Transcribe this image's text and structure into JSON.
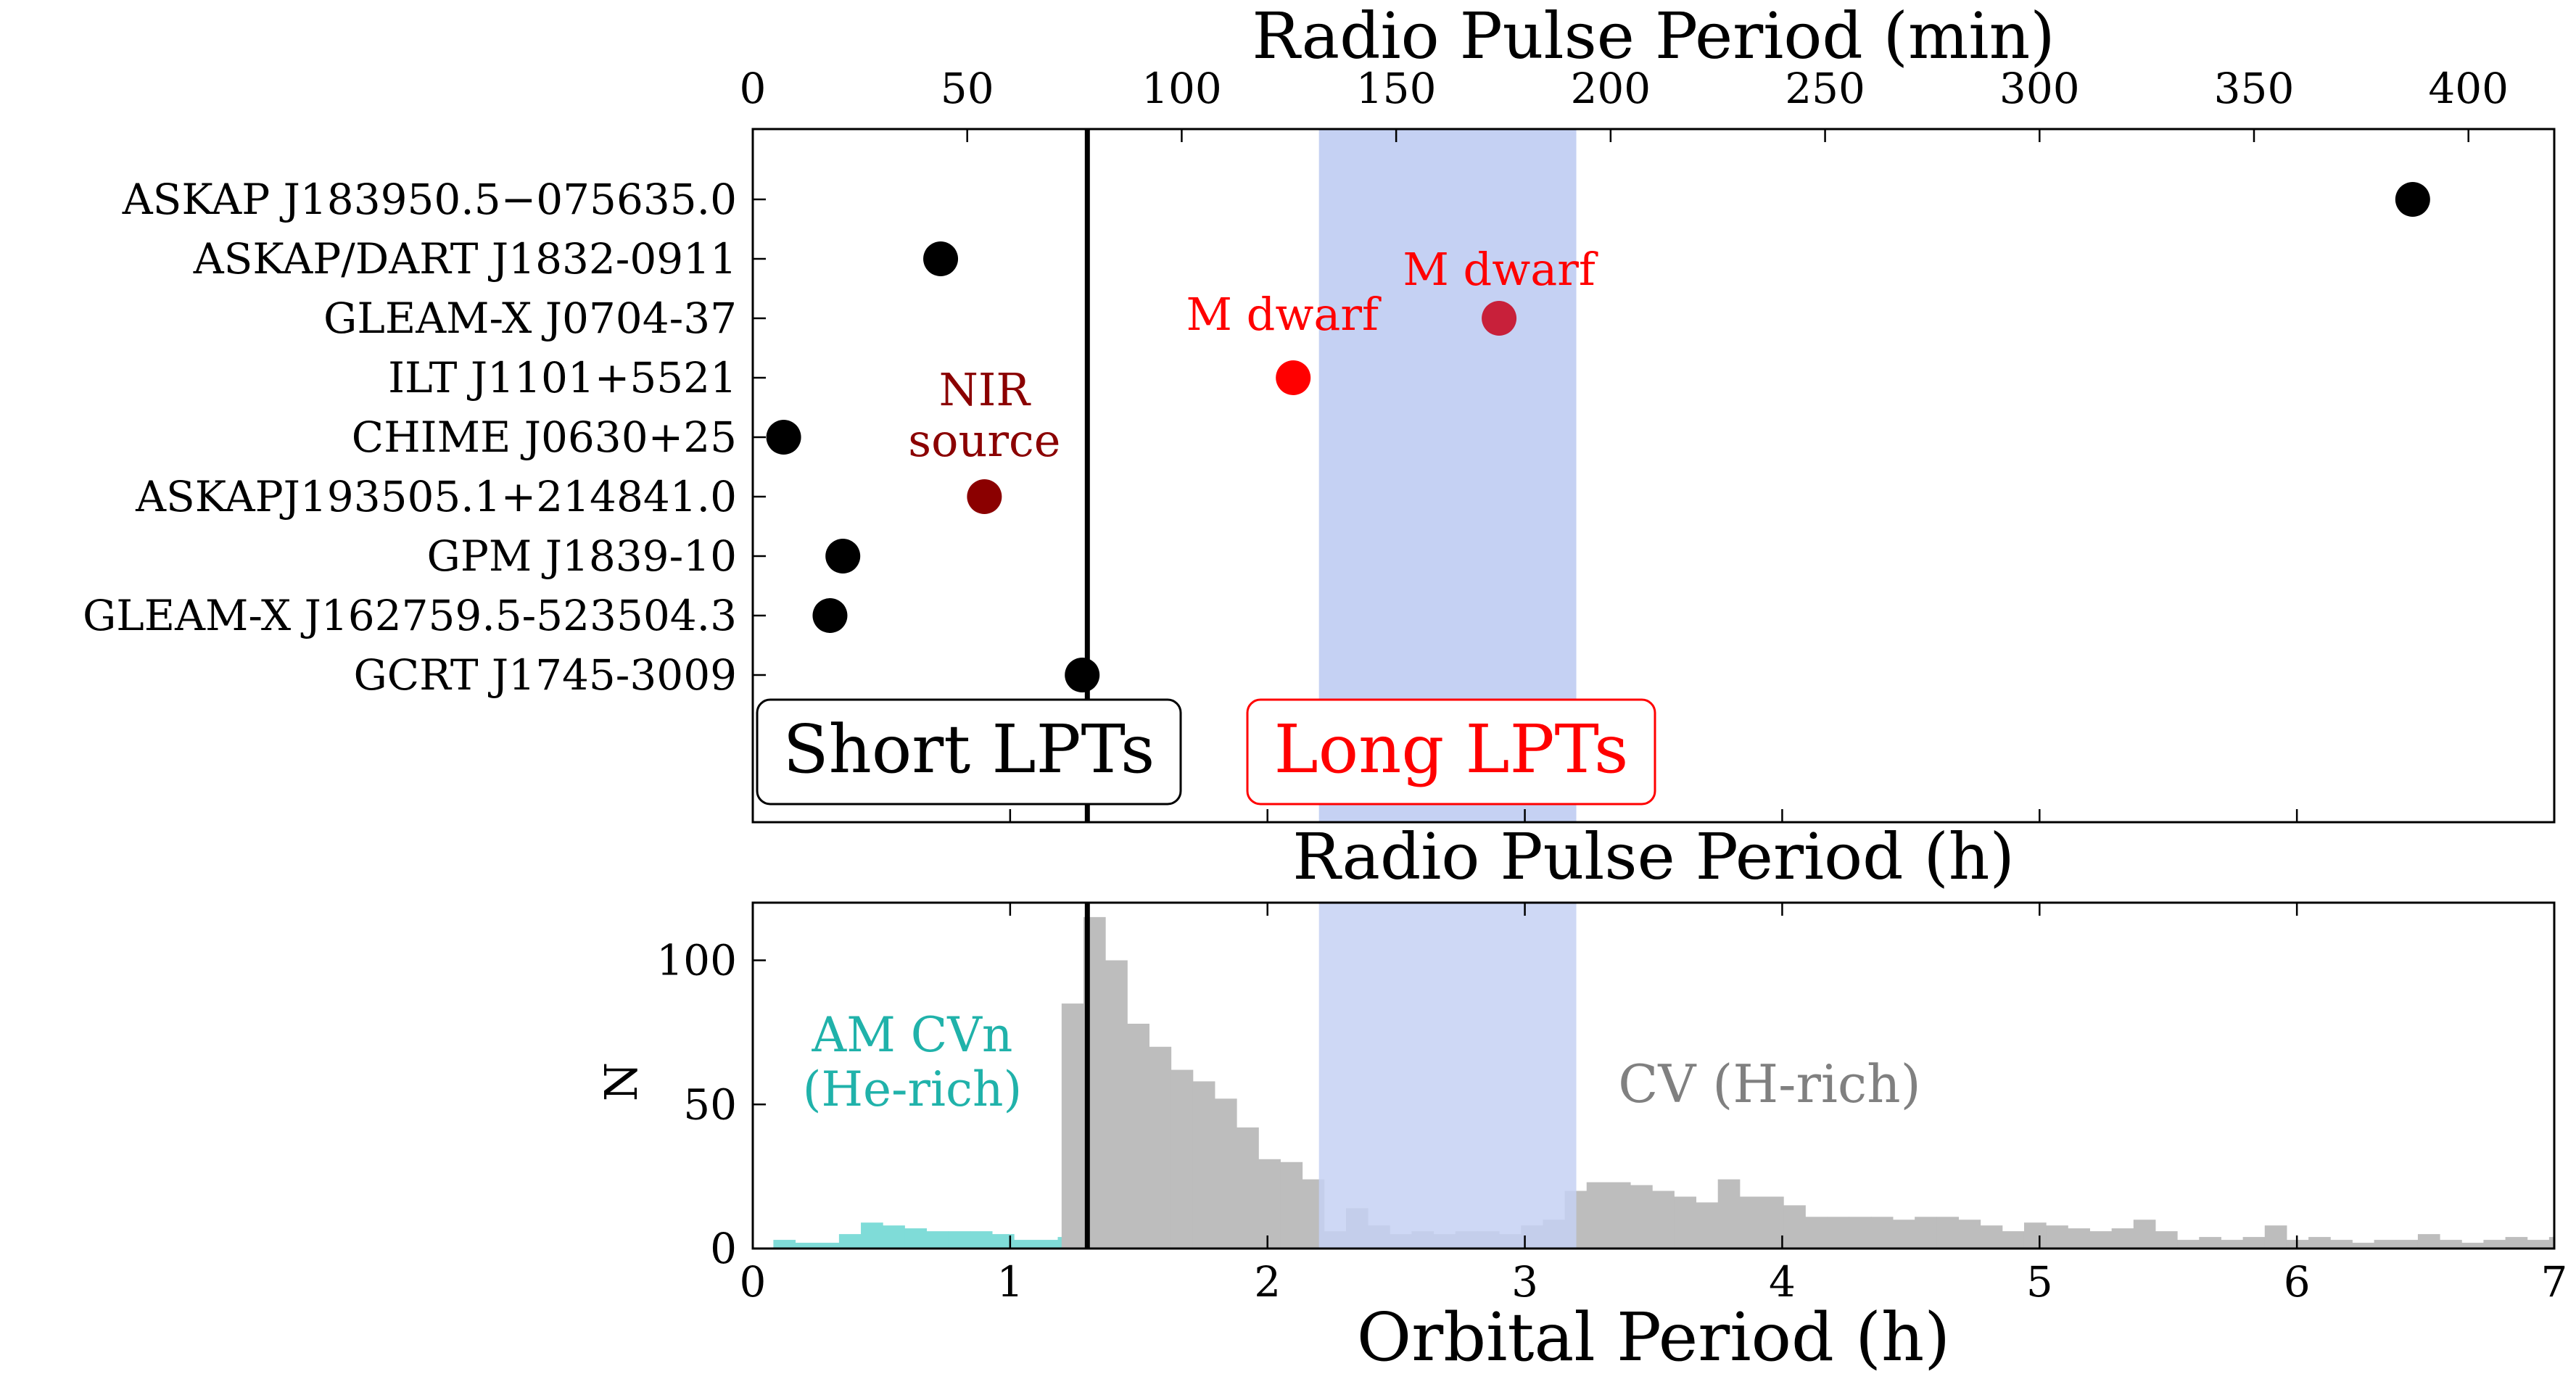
{
  "chart_data": [
    {
      "type": "scatter",
      "title": "Radio Pulse Period (min)",
      "xlabel": "Radio Pulse Period (h)",
      "xlim": [
        0,
        7
      ],
      "x_top_units": "min",
      "x_top_ticks": [
        0,
        50,
        100,
        150,
        200,
        250,
        300,
        350,
        400
      ],
      "x_top_tick_labels": [
        "0",
        "50",
        "100",
        "150",
        "200",
        "250",
        "300",
        "350",
        "400"
      ],
      "sources": [
        {
          "label": "ASKAP J183950.5−075635.0",
          "x": 6.45,
          "color": "#000000"
        },
        {
          "label": "ASKAP/DART J1832-0911",
          "x": 0.73,
          "color": "#000000"
        },
        {
          "label": "GLEAM-X J0704-37",
          "x": 2.9,
          "color": "#c8203a"
        },
        {
          "label": "ILT J1101+5521",
          "x": 2.1,
          "color": "#ff0000"
        },
        {
          "label": "CHIME J0630+25",
          "x": 0.12,
          "color": "#000000"
        },
        {
          "label": "ASKAPJ193505.1+214841.0",
          "x": 0.9,
          "color": "#8b0000"
        },
        {
          "label": "GPM J1839-10",
          "x": 0.35,
          "color": "#000000"
        },
        {
          "label": "GLEAM-X J162759.5-523504.3",
          "x": 0.3,
          "color": "#000000"
        },
        {
          "label": "GCRT J1745-3009",
          "x": 1.28,
          "color": "#000000"
        }
      ],
      "annotations": [
        {
          "text": "M dwarf",
          "color": "#ff0000"
        },
        {
          "text": "M dwarf",
          "color": "#ff0000"
        },
        {
          "text": "NIR",
          "color": "#8b0000"
        },
        {
          "text": "source",
          "color": "#8b0000"
        }
      ],
      "boxes": [
        {
          "text": "Short LPTs",
          "color": "#000000"
        },
        {
          "text": "Long LPTs",
          "color": "#ff0000"
        }
      ],
      "vline_x": 1.3,
      "shaded_band": [
        2.2,
        3.2
      ],
      "band_color": "#c5d1f3"
    },
    {
      "type": "bar",
      "xlabel": "Orbital Period (h)",
      "ylabel": "N",
      "xlim": [
        0,
        7
      ],
      "ylim": [
        0,
        120
      ],
      "x_ticks": [
        0,
        1,
        2,
        3,
        4,
        5,
        6,
        7
      ],
      "y_ticks": [
        0,
        50,
        100
      ],
      "bin_width": 0.085,
      "am_cvn": {
        "name": "AM CVn",
        "name_line2": "(He-rich)",
        "color": "#7fdcd8",
        "label_color": "#20b2aa",
        "bin_start": 0.08,
        "values": [
          3,
          2,
          2,
          5,
          9,
          8,
          7,
          6,
          6,
          6,
          5,
          3,
          3,
          4,
          3
        ]
      },
      "cv": {
        "name": "CV (H-rich)",
        "color": "#bdbdbd",
        "label_color": "#808080",
        "bin_start": 1.2,
        "values": [
          85,
          115,
          100,
          78,
          70,
          62,
          58,
          52,
          42,
          31,
          30,
          24,
          6,
          14,
          8,
          5,
          6,
          5,
          6,
          6,
          5,
          8,
          10,
          20,
          23,
          23,
          22,
          20,
          18,
          16,
          24,
          18,
          18,
          15,
          11,
          11,
          11,
          11,
          10,
          11,
          11,
          10,
          8,
          6,
          9,
          8,
          7,
          6,
          7,
          10,
          6,
          3,
          4,
          3,
          4,
          8,
          3,
          4,
          3,
          2,
          3,
          3,
          5,
          3,
          2,
          3,
          4,
          3,
          4,
          3,
          2,
          2,
          3,
          3,
          2,
          2,
          3,
          9,
          4,
          3,
          3,
          2,
          6,
          5
        ]
      },
      "vline_x": 1.3,
      "shaded_band": [
        2.2,
        3.2
      ],
      "band_color": "#c5d1f3"
    }
  ]
}
